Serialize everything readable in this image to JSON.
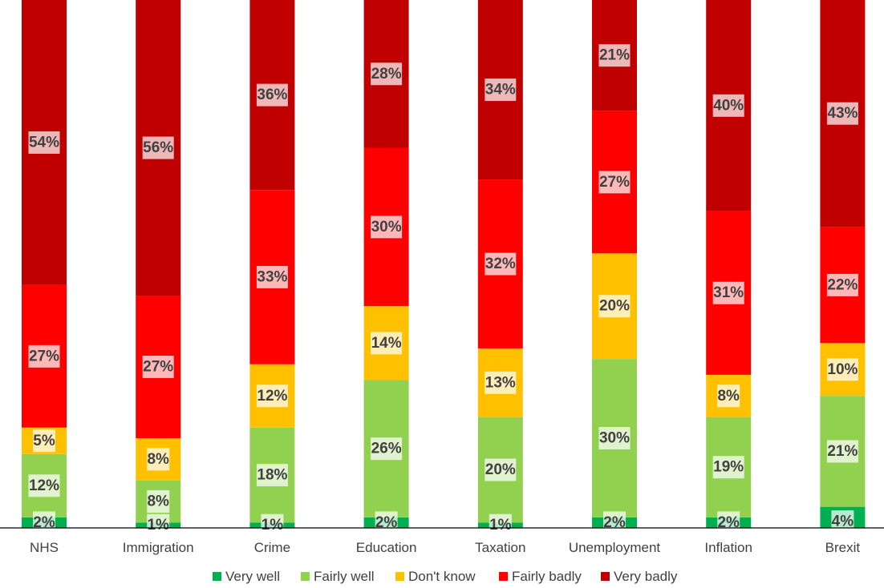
{
  "chart_data": {
    "type": "bar",
    "stacked": true,
    "categories": [
      "NHS",
      "Immigration",
      "Crime",
      "Education",
      "Taxation",
      "Unemployment",
      "Inflation",
      "Brexit"
    ],
    "series": [
      {
        "name": "Very well",
        "color": "#00B050",
        "values": [
          2,
          1,
          1,
          2,
          1,
          2,
          2,
          4
        ],
        "labels": [
          "2%",
          "1%",
          "1%",
          "2%",
          "1%",
          "2%",
          "2%",
          "4%"
        ]
      },
      {
        "name": "Fairly well",
        "color": "#92D050",
        "values": [
          12,
          8,
          18,
          26,
          20,
          30,
          19,
          21
        ],
        "labels": [
          "12%",
          "8%",
          "18%",
          "26%",
          "20%",
          "30%",
          "19%",
          "21%"
        ]
      },
      {
        "name": "Don't know",
        "color": "#FFC000",
        "values": [
          5,
          8,
          12,
          14,
          13,
          20,
          8,
          10
        ],
        "labels": [
          "5%",
          "8%",
          "12%",
          "14%",
          "13%",
          "20%",
          "8%",
          "10%"
        ]
      },
      {
        "name": "Fairly badly",
        "color": "#FF0000",
        "values": [
          27,
          27,
          33,
          30,
          32,
          27,
          31,
          22
        ],
        "labels": [
          "27%",
          "27%",
          "33%",
          "30%",
          "32%",
          "27%",
          "31%",
          "22%"
        ]
      },
      {
        "name": "Very badly",
        "color": "#C00000",
        "values": [
          54,
          56,
          36,
          28,
          34,
          21,
          40,
          43
        ],
        "labels": [
          "54%",
          "56%",
          "36%",
          "28%",
          "34%",
          "21%",
          "40%",
          "43%"
        ]
      }
    ],
    "ylim": [
      0,
      100
    ],
    "grid": false,
    "legend_position": "bottom",
    "title": "",
    "xlabel": "",
    "ylabel": ""
  }
}
